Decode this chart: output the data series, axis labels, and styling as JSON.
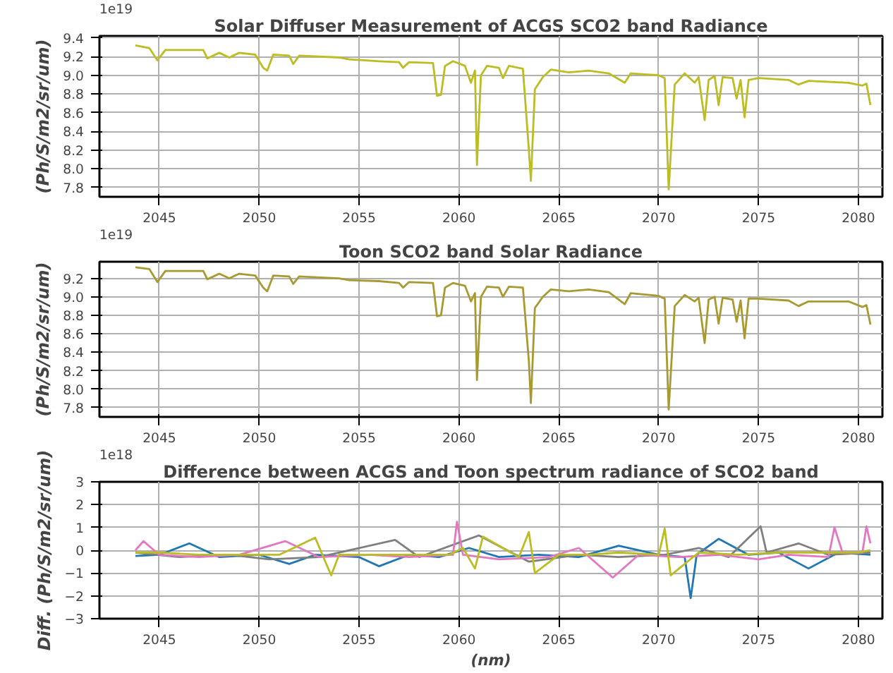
{
  "chart_data": [
    {
      "type": "line",
      "title": "Solar Diffuser Measurement of ACGS SCO2 band Radiance",
      "ylabel": "(Ph/S/m2/sr/um)",
      "annotations": [
        "1e19"
      ],
      "xlim": [
        2042,
        2081.2
      ],
      "ylim": [
        7.7,
        9.42
      ],
      "xticks": [
        2045,
        2050,
        2055,
        2060,
        2065,
        2070,
        2075,
        2080
      ],
      "yticks": [
        7.8,
        {
          "value": 8,
          "label": "8.0"
        },
        8.2,
        8.4,
        8.6,
        8.8,
        {
          "value": 9,
          "label": "9.0"
        },
        9.2,
        9.4
      ],
      "grid": true,
      "series": [
        {
          "color": "#bcbd22",
          "x": [
            2043.8,
            2044.5,
            2044.9,
            2045.3,
            2047.2,
            2047.4,
            2048,
            2048.5,
            2049,
            2049.8,
            2050.2,
            2050.4,
            2050.7,
            2051.5,
            2051.7,
            2052,
            2054,
            2054.5,
            2056,
            2057,
            2057.2,
            2057.5,
            2058.7,
            2058.9,
            2059.1,
            2059.3,
            2059.7,
            2060.3,
            2060.6,
            2060.8,
            2060.9,
            2061.1,
            2061.4,
            2062,
            2062.2,
            2062.5,
            2063.2,
            2063.5,
            2063.6,
            2063.8,
            2064.2,
            2064.6,
            2065.5,
            2066.5,
            2067.5,
            2068.3,
            2068.6,
            2070,
            2070.3,
            2070.5,
            2070.8,
            2071.3,
            2071.8,
            2072,
            2072.3,
            2072.5,
            2072.8,
            2073,
            2073.2,
            2073.7,
            2073.9,
            2074.1,
            2074.3,
            2074.5,
            2075,
            2076.5,
            2077,
            2077.5,
            2079.5,
            2080.2,
            2080.4,
            2080.6
          ],
          "values": [
            9.32,
            9.29,
            9.16,
            9.27,
            9.27,
            9.18,
            9.24,
            9.19,
            9.24,
            9.22,
            9.08,
            9.05,
            9.22,
            9.21,
            9.12,
            9.21,
            9.19,
            9.17,
            9.15,
            9.14,
            9.08,
            9.14,
            9.13,
            8.78,
            8.79,
            9.1,
            9.15,
            9.1,
            8.92,
            9.05,
            8.04,
            9.0,
            9.1,
            9.08,
            8.97,
            9.1,
            9.07,
            8.2,
            7.87,
            8.85,
            8.98,
            9.06,
            9.03,
            9.05,
            9.02,
            8.92,
            9.02,
            9.0,
            8.97,
            7.78,
            8.9,
            9.02,
            8.92,
            8.98,
            8.52,
            8.95,
            8.99,
            8.68,
            8.98,
            8.97,
            8.75,
            8.95,
            8.55,
            8.95,
            8.97,
            8.95,
            8.9,
            8.94,
            8.92,
            8.89,
            8.91,
            8.68
          ]
        }
      ]
    },
    {
      "type": "line",
      "title": "Toon SCO2 band Solar Radiance",
      "ylabel": "(Ph/S/m2/sr/um)",
      "annotations": [
        "1e19"
      ],
      "xlim": [
        2042,
        2081.2
      ],
      "ylim": [
        7.7,
        9.38
      ],
      "xticks": [
        2045,
        2050,
        2055,
        2060,
        2065,
        2070,
        2075,
        2080
      ],
      "yticks": [
        7.8,
        {
          "value": 8,
          "label": "8.0"
        },
        8.2,
        8.4,
        8.6,
        8.8,
        {
          "value": 9,
          "label": "9.0"
        },
        9.2
      ],
      "grid": true,
      "series": [
        {
          "color": "#a89a30",
          "x": [
            2043.8,
            2044.5,
            2044.9,
            2045.3,
            2047.2,
            2047.4,
            2048,
            2048.5,
            2049,
            2049.8,
            2050.2,
            2050.4,
            2050.7,
            2051.5,
            2051.7,
            2052,
            2054,
            2054.5,
            2056,
            2057,
            2057.2,
            2057.5,
            2058.7,
            2058.9,
            2059.1,
            2059.3,
            2059.7,
            2060.3,
            2060.6,
            2060.8,
            2060.9,
            2061.1,
            2061.4,
            2062,
            2062.2,
            2062.5,
            2063.2,
            2063.5,
            2063.6,
            2063.8,
            2064.2,
            2064.6,
            2065.5,
            2066.5,
            2067.5,
            2068.3,
            2068.6,
            2070,
            2070.3,
            2070.5,
            2070.8,
            2071.3,
            2071.8,
            2072,
            2072.3,
            2072.5,
            2072.8,
            2073,
            2073.2,
            2073.7,
            2073.9,
            2074.1,
            2074.3,
            2074.5,
            2075,
            2076.5,
            2077,
            2077.5,
            2079.5,
            2080.2,
            2080.4,
            2080.6
          ],
          "values": [
            9.32,
            9.3,
            9.16,
            9.28,
            9.28,
            9.19,
            9.25,
            9.2,
            9.25,
            9.23,
            9.1,
            9.06,
            9.23,
            9.22,
            9.14,
            9.22,
            9.2,
            9.18,
            9.17,
            9.15,
            9.1,
            9.16,
            9.15,
            8.79,
            8.8,
            9.1,
            9.15,
            9.12,
            8.95,
            9.04,
            8.1,
            9.0,
            9.11,
            9.1,
            9.0,
            9.11,
            9.1,
            8.3,
            7.85,
            8.88,
            9.0,
            9.08,
            9.06,
            9.08,
            9.05,
            8.92,
            9.04,
            9.01,
            8.98,
            7.78,
            8.9,
            9.02,
            8.95,
            8.99,
            8.5,
            8.97,
            9.0,
            8.71,
            8.99,
            8.97,
            8.73,
            8.96,
            8.55,
            8.98,
            8.98,
            8.96,
            8.9,
            8.95,
            8.95,
            8.89,
            8.91,
            8.7
          ]
        }
      ]
    },
    {
      "type": "line",
      "title": "Difference between ACGS and Toon spectrum radiance of SCO2 band",
      "xlabel": "(nm)",
      "ylabel": "Diff. (Ph/S/m2/sr/um)",
      "annotations": [
        "1e18"
      ],
      "xlim": [
        2042,
        2081.2
      ],
      "ylim": [
        -3,
        3
      ],
      "xticks": [
        2045,
        2050,
        2055,
        2060,
        2065,
        2070,
        2075,
        2080
      ],
      "yticks": [
        {
          "value": -3,
          "label": "−3"
        },
        {
          "value": -2,
          "label": "−2"
        },
        {
          "value": -1,
          "label": "−1"
        },
        0,
        1,
        2,
        3
      ],
      "grid": true,
      "series": [
        {
          "color": "#1f77b4",
          "x": [
            2043.8,
            2045,
            2046.5,
            2048,
            2050,
            2051.5,
            2052.8,
            2055,
            2056,
            2057.5,
            2059,
            2060.5,
            2062,
            2064,
            2066,
            2068,
            2070,
            2071.3,
            2071.6,
            2071.9,
            2073,
            2074.5,
            2076,
            2077.5,
            2079,
            2080.6
          ],
          "values": [
            -0.25,
            -0.2,
            0.3,
            -0.3,
            -0.2,
            -0.6,
            -0.2,
            -0.3,
            -0.7,
            -0.2,
            -0.3,
            0.1,
            -0.3,
            -0.2,
            -0.3,
            0.2,
            -0.2,
            -0.3,
            -2.1,
            -0.2,
            0.5,
            -0.2,
            -0.1,
            -0.8,
            -0.1,
            -0.2
          ]
        },
        {
          "color": "#7f7f7f",
          "x": [
            2043.8,
            2046,
            2048.5,
            2050.5,
            2053,
            2056.8,
            2058,
            2061,
            2063.5,
            2066,
            2068,
            2070.3,
            2072,
            2073.5,
            2075.1,
            2075.4,
            2077,
            2078.5,
            2080.6
          ],
          "values": [
            -0.1,
            -0.3,
            -0.2,
            -0.4,
            -0.3,
            0.45,
            -0.3,
            0.65,
            -0.5,
            -0.2,
            -0.3,
            -0.2,
            0.1,
            -0.3,
            1.05,
            -0.1,
            0.3,
            -0.2,
            -0.1
          ]
        },
        {
          "color": "#e377c2",
          "x": [
            2043.8,
            2044.2,
            2045,
            2047,
            2049,
            2051.3,
            2053,
            2055.5,
            2057.5,
            2059.7,
            2059.9,
            2060.2,
            2062,
            2064.5,
            2066,
            2067.7,
            2069,
            2071,
            2073,
            2075,
            2076.5,
            2078.5,
            2078.8,
            2079.2,
            2080.2,
            2080.4,
            2080.6
          ],
          "values": [
            0,
            0.4,
            -0.2,
            -0.3,
            -0.2,
            0.4,
            -0.3,
            -0.2,
            -0.3,
            -0.2,
            1.25,
            -0.2,
            -0.4,
            -0.3,
            0.1,
            -1.2,
            -0.2,
            -0.3,
            -0.2,
            -0.4,
            -0.2,
            -0.3,
            1.0,
            -0.1,
            -0.1,
            1.05,
            0.3
          ]
        },
        {
          "color": "#bcbd22",
          "x": [
            2043.8,
            2045,
            2047,
            2049,
            2051,
            2052.8,
            2053.6,
            2054,
            2056,
            2058,
            2059.5,
            2060.2,
            2060.8,
            2061.2,
            2063,
            2063.5,
            2063.8,
            2065,
            2066.5,
            2068,
            2070,
            2070.3,
            2070.6,
            2072,
            2074,
            2076,
            2078,
            2080,
            2080.6
          ],
          "values": [
            -0.1,
            -0.1,
            -0.2,
            -0.2,
            -0.2,
            0.55,
            -1.1,
            -0.2,
            -0.2,
            -0.2,
            -0.2,
            0.1,
            -0.8,
            0.6,
            -0.3,
            0.8,
            -1.0,
            -0.2,
            -0.2,
            -0.1,
            -0.2,
            0.95,
            -1.1,
            -0.1,
            -0.2,
            -0.1,
            -0.1,
            -0.1,
            0
          ]
        }
      ]
    }
  ]
}
